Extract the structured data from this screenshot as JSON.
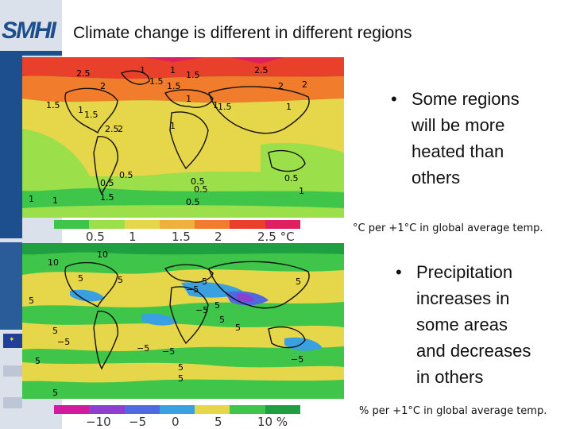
{
  "header": {
    "logo_text": "SMHI",
    "title": "Climate change is different in different regions",
    "accent_color": "#1d4f8f"
  },
  "temperature_panel": {
    "bullet": [
      "Some regions",
      "will be more",
      "heated than",
      "others"
    ],
    "caption": "°C per +1°C in global average temp.",
    "colorbar_labels": [
      "0.5",
      "1",
      "1.5",
      "2",
      "2.5 °C"
    ],
    "colorbar_colors": [
      "#3fc64a",
      "#9be04a",
      "#e6d64a",
      "#f0b040",
      "#f07c2c",
      "#e8402a",
      "#e01f5e"
    ],
    "map_labels": [
      "2.5",
      "2",
      "1",
      "1.5",
      "1.5",
      "1.5",
      "1",
      "1.5",
      "1",
      "2",
      "2.5",
      "2",
      "1.5",
      "2.5",
      "2",
      "1",
      "1",
      "0.5",
      "0.5",
      "0.5",
      "0.5",
      "0.5",
      "1",
      "1",
      "1",
      "1.5",
      "0.5",
      "1",
      "1",
      "1.5"
    ]
  },
  "precipitation_panel": {
    "bullet": [
      "Precipitation",
      "increases in",
      "some areas",
      "and decreases",
      "in others"
    ],
    "caption": "% per +1°C in global average temp.",
    "colorbar_labels": [
      "−10",
      "−5",
      "0",
      "5",
      "10 %"
    ],
    "colorbar_colors": [
      "#d21aa0",
      "#8e3fd0",
      "#4f6ae0",
      "#3aa0e0",
      "#e6d64a",
      "#3fc64a",
      "#1f9f3f"
    ],
    "map_labels": [
      "10",
      "10",
      "5",
      "5",
      "−5",
      "5",
      "−5",
      "5",
      "5",
      "5",
      "5",
      "−5",
      "5",
      "−5",
      "5",
      "−5",
      "−5",
      "5",
      "5",
      "5",
      "5"
    ]
  }
}
